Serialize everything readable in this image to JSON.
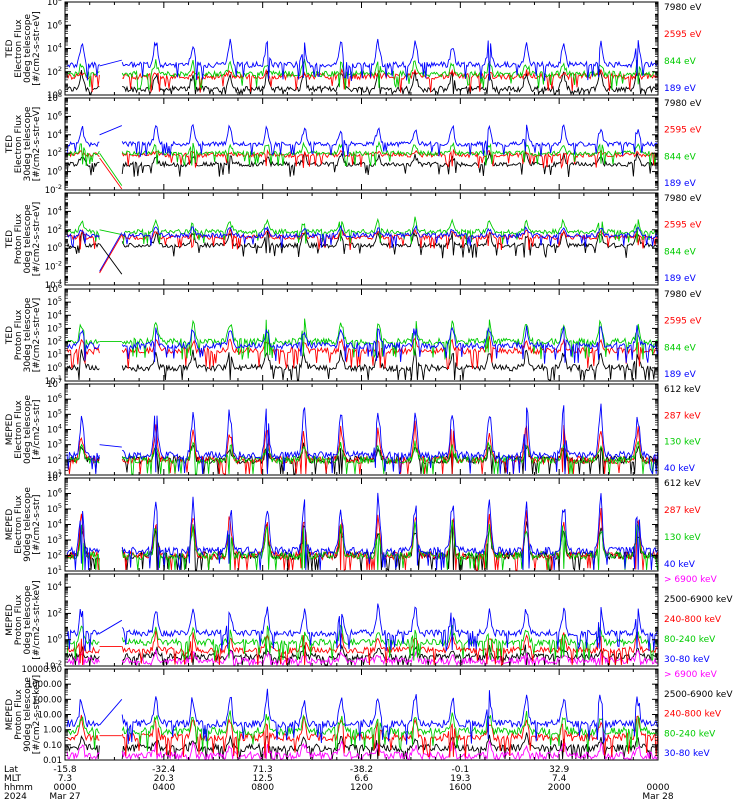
{
  "chart_data": [
    {
      "type": "line",
      "ylabel": [
        "TED",
        "Electron Flux",
        "0deg telescope",
        "[#/cm2-s-str-eV]"
      ],
      "log": true,
      "ylim": [
        1,
        100000000
      ],
      "ticks": [
        {
          "v": 1,
          "t": "10",
          "e": "0"
        },
        {
          "v": 100,
          "t": "10",
          "e": "2"
        },
        {
          "v": 10000,
          "t": "10",
          "e": "4"
        },
        {
          "v": 1000000,
          "t": "10",
          "e": "6"
        },
        {
          "v": 100000000,
          "t": "10",
          "e": "8"
        }
      ],
      "legend": [
        {
          "name": "7980 eV",
          "color": "#000000"
        },
        {
          "name": "2595 eV",
          "color": "#ff0000"
        },
        {
          "name": "844 eV",
          "color": "#00cc00"
        },
        {
          "name": "189 eV",
          "color": "#0000ff"
        }
      ],
      "series_levels": {
        "#000000": [
          0.5,
          2.2
        ],
        "#ff0000": [
          1.6,
          2.0
        ],
        "#00cc00": [
          1.8,
          3.0
        ],
        "#0000ff": [
          2.6,
          5.0
        ]
      },
      "gap_lines": [
        {
          "color": "#0000ff",
          "x": [
            1.4,
            2.3
          ],
          "y": [
            316,
            1000
          ]
        }
      ]
    },
    {
      "type": "line",
      "ylabel": [
        "TED",
        "Electron Flux",
        "30deg telescope",
        "[#/cm2-s-str-eV]"
      ],
      "log": true,
      "ylim": [
        0.01,
        100000000
      ],
      "ticks": [
        {
          "v": 0.01,
          "t": "10",
          "e": "-2"
        },
        {
          "v": 1,
          "t": "10",
          "e": "0"
        },
        {
          "v": 100,
          "t": "10",
          "e": "2"
        },
        {
          "v": 10000,
          "t": "10",
          "e": "4"
        },
        {
          "v": 1000000,
          "t": "10",
          "e": "6"
        },
        {
          "v": 100000000,
          "t": "10",
          "e": "8"
        }
      ],
      "legend": [
        {
          "name": "7980 eV",
          "color": "#000000"
        },
        {
          "name": "2595 eV",
          "color": "#ff0000"
        },
        {
          "name": "844 eV",
          "color": "#00cc00"
        },
        {
          "name": "189 eV",
          "color": "#0000ff"
        }
      ],
      "series_levels": {
        "#000000": [
          0.8,
          2.0
        ],
        "#ff0000": [
          1.8,
          2.2
        ],
        "#00cc00": [
          2.0,
          3.2
        ],
        "#0000ff": [
          3.0,
          5.2
        ]
      },
      "gap_lines": [
        {
          "color": "#0000ff",
          "x": [
            1.4,
            2.3
          ],
          "y": [
            10000,
            100000
          ]
        },
        {
          "color": "#00cc00",
          "x": [
            1.4,
            2.3
          ],
          "y": [
            100,
            0.03
          ]
        },
        {
          "color": "#ff0000",
          "x": [
            1.4,
            2.3
          ],
          "y": [
            30,
            0.01
          ]
        }
      ]
    },
    {
      "type": "line",
      "ylabel": [
        "TED",
        "Proton Flux",
        "0deg telescope",
        "[#/cm2-s-str-eV]"
      ],
      "log": true,
      "ylim": [
        0.0001,
        1000000
      ],
      "ticks": [
        {
          "v": 0.0001,
          "t": "10",
          "e": "-4"
        },
        {
          "v": 0.01,
          "t": "10",
          "e": "-2"
        },
        {
          "v": 1,
          "t": "10",
          "e": "0"
        },
        {
          "v": 100,
          "t": "10",
          "e": "2"
        },
        {
          "v": 10000,
          "t": "10",
          "e": "4"
        }
      ],
      "legend": [
        {
          "name": "7980 eV",
          "color": "#000000"
        },
        {
          "name": "2595 eV",
          "color": "#ff0000"
        },
        {
          "name": "844 eV",
          "color": "#00cc00"
        },
        {
          "name": "189 eV",
          "color": "#0000ff"
        }
      ],
      "series_levels": {
        "#000000": [
          0.3,
          2.0
        ],
        "#ff0000": [
          1.2,
          2.0
        ],
        "#00cc00": [
          1.8,
          3.2
        ],
        "#0000ff": [
          1.4,
          2.4
        ]
      },
      "gap_lines": [
        {
          "color": "#00cc00",
          "x": [
            1.4,
            2.3
          ],
          "y": [
            100,
            30
          ]
        },
        {
          "color": "#0000ff",
          "x": [
            1.4,
            2.3
          ],
          "y": [
            0.003,
            50
          ]
        },
        {
          "color": "#ff0000",
          "x": [
            1.4,
            2.3
          ],
          "y": [
            0.002,
            30
          ]
        },
        {
          "color": "#000000",
          "x": [
            1.4,
            2.3
          ],
          "y": [
            3,
            0.0015
          ]
        }
      ]
    },
    {
      "type": "line",
      "ylabel": [
        "TED",
        "Proton Flux",
        "30deg telescope",
        "[#/cm2-s-str-eV]"
      ],
      "log": true,
      "ylim": [
        0.1,
        1000000
      ],
      "ticks": [
        {
          "v": 0.1,
          "t": "10",
          "e": "-1"
        },
        {
          "v": 1,
          "t": "10",
          "e": "0"
        },
        {
          "v": 10,
          "t": "10",
          "e": "1"
        },
        {
          "v": 100,
          "t": "10",
          "e": "2"
        },
        {
          "v": 1000,
          "t": "10",
          "e": "3"
        },
        {
          "v": 10000,
          "t": "10",
          "e": "4"
        },
        {
          "v": 100000,
          "t": "10",
          "e": "5"
        },
        {
          "v": 1000000,
          "t": "10",
          "e": "6"
        }
      ],
      "legend": [
        {
          "name": "7980 eV",
          "color": "#000000"
        },
        {
          "name": "2595 eV",
          "color": "#ff0000"
        },
        {
          "name": "844 eV",
          "color": "#00cc00"
        },
        {
          "name": "189 eV",
          "color": "#0000ff"
        }
      ],
      "series_levels": {
        "#000000": [
          0.0,
          1.4
        ],
        "#ff0000": [
          1.3,
          2.2
        ],
        "#00cc00": [
          2.0,
          3.8
        ],
        "#0000ff": [
          1.7,
          3.2
        ]
      },
      "gap_lines": [
        {
          "color": "#00cc00",
          "x": [
            1.4,
            2.3
          ],
          "y": [
            100,
            100
          ]
        }
      ]
    },
    {
      "type": "line",
      "ylabel": [
        "MEPED",
        "Electron Flux",
        "0deg telescope",
        "[#/cm2-s-str]"
      ],
      "log": true,
      "ylim": [
        10,
        10000000
      ],
      "ticks": [
        {
          "v": 10,
          "t": "10",
          "e": "1"
        },
        {
          "v": 100,
          "t": "10",
          "e": "2"
        },
        {
          "v": 1000,
          "t": "10",
          "e": "3"
        },
        {
          "v": 10000,
          "t": "10",
          "e": "4"
        },
        {
          "v": 100000,
          "t": "10",
          "e": "5"
        },
        {
          "v": 1000000,
          "t": "10",
          "e": "6"
        },
        {
          "v": 10000000,
          "t": "10",
          "e": "7"
        }
      ],
      "legend": [
        {
          "name": "612 keV",
          "color": "#000000"
        },
        {
          "name": "287 keV",
          "color": "#ff0000"
        },
        {
          "name": "130 keV",
          "color": "#00cc00"
        },
        {
          "name": "40 keV",
          "color": "#0000ff"
        }
      ],
      "series_levels": {
        "#000000": [
          2.0,
          3.0
        ],
        "#ff0000": [
          2.0,
          4.4
        ],
        "#00cc00": [
          2.0,
          3.2
        ],
        "#0000ff": [
          2.3,
          5.8
        ]
      },
      "gap_lines": [
        {
          "color": "#0000ff",
          "x": [
            1.4,
            2.3
          ],
          "y": [
            1000,
            700
          ]
        }
      ]
    },
    {
      "type": "line",
      "ylabel": [
        "MEPED",
        "Electron Flux",
        "90deg telescope",
        "[#/cm2-s-str]"
      ],
      "log": true,
      "ylim": [
        10,
        10000000
      ],
      "ticks": [
        {
          "v": 10,
          "t": "10",
          "e": "1"
        },
        {
          "v": 100,
          "t": "10",
          "e": "2"
        },
        {
          "v": 1000,
          "t": "10",
          "e": "3"
        },
        {
          "v": 10000,
          "t": "10",
          "e": "4"
        },
        {
          "v": 100000,
          "t": "10",
          "e": "5"
        },
        {
          "v": 1000000,
          "t": "10",
          "e": "6"
        },
        {
          "v": 10000000,
          "t": "10",
          "e": "7"
        }
      ],
      "legend": [
        {
          "name": "612 keV",
          "color": "#000000"
        },
        {
          "name": "287 keV",
          "color": "#ff0000"
        },
        {
          "name": "130 keV",
          "color": "#00cc00"
        },
        {
          "name": "40 keV",
          "color": "#0000ff"
        }
      ],
      "series_levels": {
        "#000000": [
          2.0,
          4.2
        ],
        "#ff0000": [
          2.0,
          5.0
        ],
        "#00cc00": [
          2.0,
          4.2
        ],
        "#0000ff": [
          2.3,
          6.0
        ]
      },
      "gap_lines": []
    },
    {
      "type": "line",
      "ylabel": [
        "MEPED",
        "Proton Flux",
        "0deg telescope",
        "[#/cm2-s-str-keV]"
      ],
      "log": true,
      "ylim": [
        0.01,
        100000
      ],
      "ticks": [
        {
          "v": 0.01,
          "t": "10",
          "e": "-2"
        },
        {
          "v": 1,
          "t": "10",
          "e": "0"
        },
        {
          "v": 100,
          "t": "10",
          "e": "2"
        },
        {
          "v": 10000,
          "t": "10",
          "e": "4"
        }
      ],
      "legend": [
        {
          "name": "> 6900 keV",
          "color": "#ff00ff"
        },
        {
          "name": "2500-6900 keV",
          "color": "#000000"
        },
        {
          "name": "240-800 keV",
          "color": "#ff0000"
        },
        {
          "name": "80-240 keV",
          "color": "#00cc00"
        },
        {
          "name": "30-80 keV",
          "color": "#0000ff"
        }
      ],
      "series_levels": {
        "#ff00ff": [
          -1.6,
          -0.9
        ],
        "#000000": [
          -1.3,
          -0.5
        ],
        "#ff0000": [
          -0.8,
          0.6
        ],
        "#00cc00": [
          -0.2,
          1.0
        ],
        "#0000ff": [
          0.5,
          2.8
        ]
      },
      "gap_lines": [
        {
          "color": "#0000ff",
          "x": [
            1.4,
            2.3
          ],
          "y": [
            3,
            30
          ]
        },
        {
          "color": "#ff0000",
          "x": [
            1.4,
            2.3
          ],
          "y": [
            0.3,
            0.3
          ]
        }
      ]
    },
    {
      "type": "line",
      "ylabel": [
        "MEPED",
        "Proton Flux",
        "90deg telescope",
        "[#/cm2-s-str-keV]"
      ],
      "log": true,
      "ylim": [
        0.01,
        10000
      ],
      "ticks": [
        {
          "v": 0.01,
          "t": "0.01"
        },
        {
          "v": 0.1,
          "t": "0.10"
        },
        {
          "v": 1,
          "t": "1.00"
        },
        {
          "v": 10,
          "t": "10.00"
        },
        {
          "v": 100,
          "t": "100.00"
        },
        {
          "v": 1000,
          "t": "1000.00"
        },
        {
          "v": 10000,
          "t": "10000.00"
        }
      ],
      "legend": [
        {
          "name": "> 6900 keV",
          "color": "#ff00ff"
        },
        {
          "name": "2500-6900 keV",
          "color": "#000000"
        },
        {
          "name": "240-800 keV",
          "color": "#ff0000"
        },
        {
          "name": "80-240 keV",
          "color": "#00cc00"
        },
        {
          "name": "30-80 keV",
          "color": "#0000ff"
        }
      ],
      "series_levels": {
        "#ff00ff": [
          -1.7,
          -0.8
        ],
        "#000000": [
          -1.2,
          -0.4
        ],
        "#ff0000": [
          -0.5,
          0.9
        ],
        "#00cc00": [
          -0.1,
          1.2
        ],
        "#0000ff": [
          0.4,
          2.6
        ]
      },
      "gap_lines": [
        {
          "color": "#0000ff",
          "x": [
            1.4,
            2.3
          ],
          "y": [
            2,
            100
          ]
        },
        {
          "color": "#ff0000",
          "x": [
            1.4,
            2.3
          ],
          "y": [
            0.4,
            0.4
          ]
        }
      ]
    }
  ],
  "x_axis": {
    "range_hours": [
      0,
      24
    ],
    "data_gap_hours": [
      1.4,
      2.3
    ],
    "row_labels": [
      "Lat",
      "MLT",
      "hhmm",
      "2024"
    ],
    "columns": [
      {
        "hours": 0,
        "lat": "-15.8",
        "mlt": "7.3",
        "hhmm": "0000",
        "date": "Mar 27"
      },
      {
        "hours": 4,
        "lat": "-32.4",
        "mlt": "20.3",
        "hhmm": "0400",
        "date": ""
      },
      {
        "hours": 8,
        "lat": "71.3",
        "mlt": "12.5",
        "hhmm": "0800",
        "date": ""
      },
      {
        "hours": 12,
        "lat": "-38.2",
        "mlt": "6.6",
        "hhmm": "1200",
        "date": ""
      },
      {
        "hours": 16,
        "lat": "-0.1",
        "mlt": "19.3",
        "hhmm": "1600",
        "date": ""
      },
      {
        "hours": 20,
        "lat": "32.9",
        "mlt": "7.4",
        "hhmm": "2000",
        "date": ""
      },
      {
        "hours": 24,
        "lat": "",
        "mlt": "",
        "hhmm": "0000",
        "date": "Mar 28"
      }
    ]
  }
}
